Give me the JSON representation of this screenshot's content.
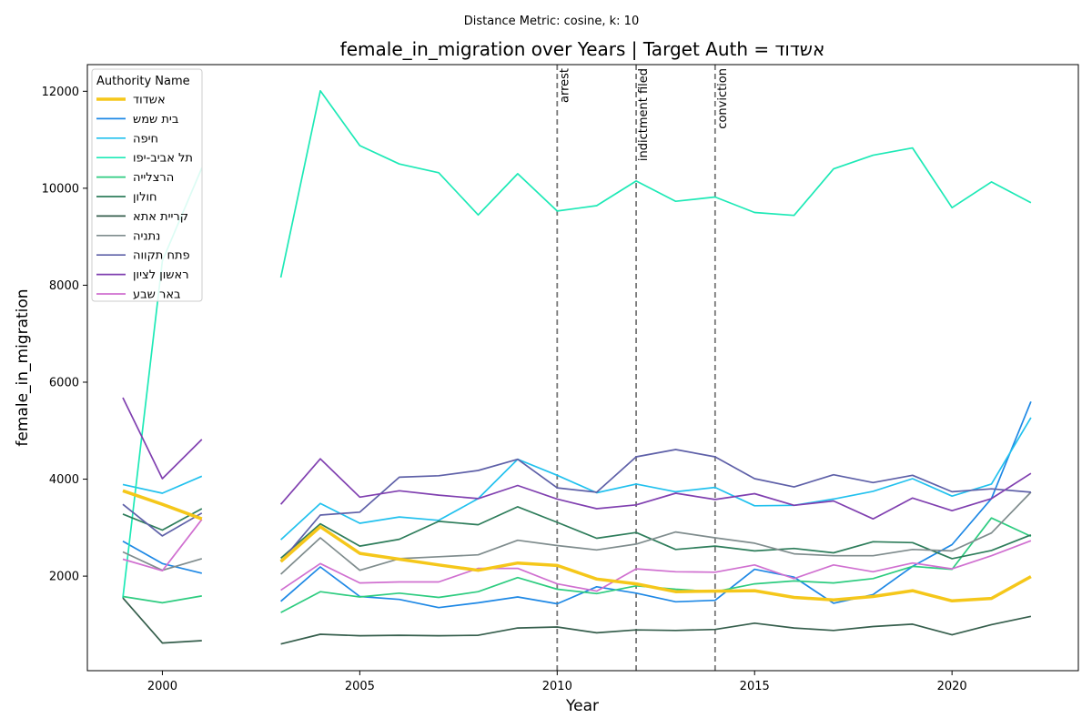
{
  "chart_data": {
    "type": "line",
    "suptitle": "Distance Metric: cosine, k: 10",
    "title": "female_in_migration over Years | Target Auth = אשדוד",
    "xlabel": "Year",
    "ylabel": "female_in_migration",
    "xlim": [
      1998.1,
      2023.2
    ],
    "ylim": [
      50,
      12550
    ],
    "xticks": [
      2000,
      2005,
      2010,
      2015,
      2020
    ],
    "yticks": [
      2000,
      4000,
      6000,
      8000,
      10000,
      12000
    ],
    "grid": false,
    "legend_title": "Authority Name",
    "legend_position": "upper-left",
    "events": [
      {
        "x": 2010,
        "label": "arrest"
      },
      {
        "x": 2012,
        "label": "indictment filed"
      },
      {
        "x": 2014,
        "label": "conviction"
      }
    ],
    "x": [
      1999,
      2000,
      2001,
      2002,
      2003,
      2004,
      2005,
      2006,
      2007,
      2008,
      2009,
      2010,
      2011,
      2012,
      2013,
      2014,
      2015,
      2016,
      2017,
      2018,
      2019,
      2020,
      2021,
      2022
    ],
    "series": [
      {
        "name": "אשדוד",
        "color": "#f5c71a",
        "width": 3.5,
        "values": [
          3760,
          3480,
          3180,
          null,
          2300,
          3020,
          2470,
          2350,
          2230,
          2120,
          2270,
          2220,
          1940,
          1840,
          1680,
          1690,
          1700,
          1560,
          1510,
          1580,
          1700,
          1490,
          1540,
          1990
        ]
      },
      {
        "name": "בית שמש",
        "color": "#1e88e5",
        "width": 1.7,
        "values": [
          2720,
          2260,
          2060,
          null,
          1480,
          2190,
          1580,
          1520,
          1350,
          1450,
          1570,
          1430,
          1780,
          1650,
          1470,
          1500,
          2140,
          1980,
          1440,
          1620,
          2200,
          2650,
          3600,
          5600
        ]
      },
      {
        "name": "חיפה",
        "color": "#22c1ee",
        "width": 1.7,
        "values": [
          3890,
          3710,
          4060,
          null,
          2750,
          3500,
          3090,
          3220,
          3150,
          3600,
          4410,
          4080,
          3720,
          3900,
          3740,
          3830,
          3450,
          3460,
          3590,
          3750,
          4010,
          3650,
          3900,
          5270
        ]
      },
      {
        "name": "תל אביב-יפו",
        "color": "#1de9b6",
        "width": 1.7,
        "values": [
          1550,
          8500,
          10420,
          null,
          8160,
          12010,
          10880,
          10500,
          10320,
          9450,
          10300,
          9530,
          9640,
          10150,
          9730,
          9820,
          9500,
          9440,
          10400,
          10680,
          10830,
          9600,
          10130,
          9700
        ]
      },
      {
        "name": "הרצלייה",
        "color": "#2ecc80",
        "width": 1.7,
        "values": [
          1580,
          1450,
          1590,
          null,
          1250,
          1680,
          1570,
          1650,
          1560,
          1680,
          1970,
          1730,
          1640,
          1800,
          1730,
          1680,
          1840,
          1900,
          1860,
          1950,
          2200,
          2140,
          3200,
          2820
        ]
      },
      {
        "name": "חולון",
        "color": "#2e7d5b",
        "width": 1.7,
        "values": [
          3280,
          2950,
          3390,
          null,
          2370,
          3080,
          2620,
          2760,
          3130,
          3060,
          3430,
          3110,
          2780,
          2900,
          2550,
          2620,
          2520,
          2570,
          2480,
          2710,
          2690,
          2360,
          2530,
          2850
        ]
      },
      {
        "name": "קריית אתא",
        "color": "#355e4c",
        "width": 1.7,
        "values": [
          1550,
          620,
          670,
          null,
          600,
          800,
          770,
          780,
          770,
          780,
          930,
          950,
          830,
          890,
          880,
          900,
          1030,
          930,
          880,
          960,
          1010,
          790,
          1000,
          1170
        ]
      },
      {
        "name": "נתניה",
        "color": "#7f8c8d",
        "width": 1.7,
        "values": [
          2500,
          2120,
          2360,
          null,
          2040,
          2790,
          2120,
          2360,
          2400,
          2440,
          2740,
          2630,
          2540,
          2660,
          2910,
          2790,
          2680,
          2460,
          2420,
          2420,
          2550,
          2520,
          2890,
          3730
        ]
      },
      {
        "name": "פתח תקווה",
        "color": "#5e60a8",
        "width": 1.7,
        "values": [
          3480,
          2830,
          3300,
          null,
          2300,
          3260,
          3320,
          4040,
          4070,
          4180,
          4410,
          3820,
          3730,
          4460,
          4610,
          4460,
          4010,
          3840,
          4090,
          3930,
          4080,
          3740,
          3800,
          3730
        ]
      },
      {
        "name": "ראשון לציון",
        "color": "#8040b0",
        "width": 1.7,
        "values": [
          5680,
          4010,
          4820,
          null,
          3480,
          4420,
          3630,
          3760,
          3670,
          3600,
          3870,
          3590,
          3390,
          3470,
          3710,
          3580,
          3700,
          3460,
          3550,
          3180,
          3610,
          3350,
          3600,
          4120
        ]
      },
      {
        "name": "באר שבע",
        "color": "#d070d0",
        "width": 1.7,
        "values": [
          2350,
          2110,
          3170,
          null,
          1710,
          2260,
          1860,
          1880,
          1880,
          2160,
          2160,
          1840,
          1690,
          2150,
          2090,
          2080,
          2230,
          1950,
          2230,
          2090,
          2270,
          2150,
          2420,
          2730
        ]
      }
    ]
  }
}
